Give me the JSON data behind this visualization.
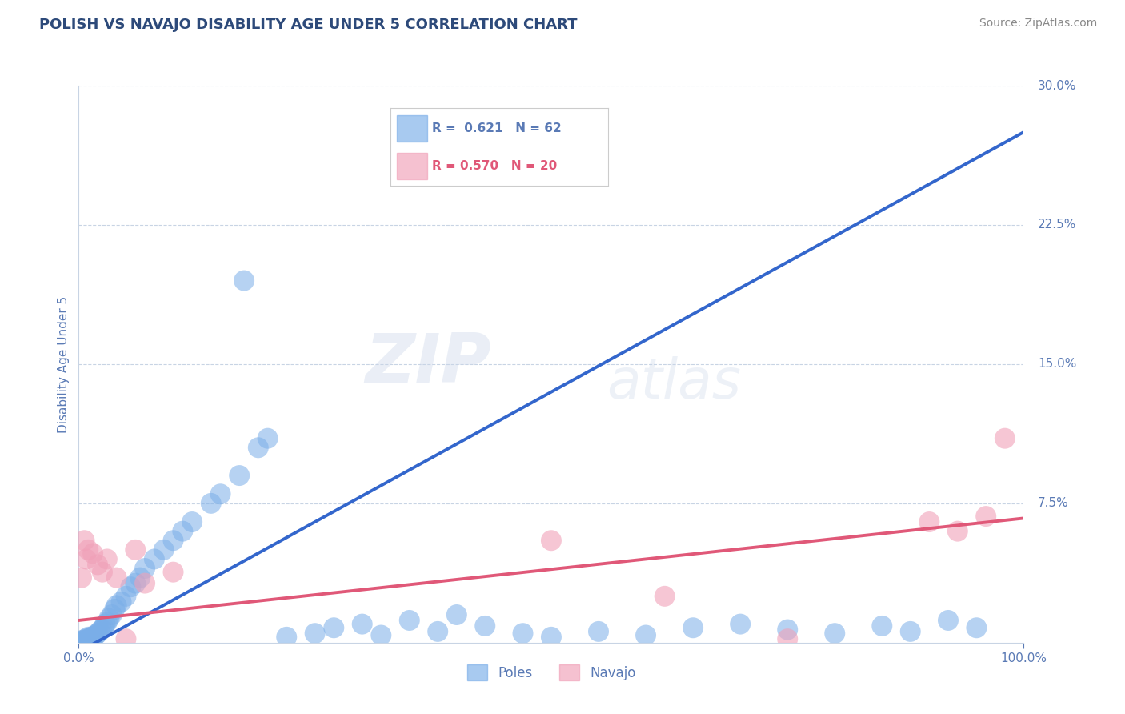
{
  "title": "POLISH VS NAVAJO DISABILITY AGE UNDER 5 CORRELATION CHART",
  "source": "Source: ZipAtlas.com",
  "ylabel": "Disability Age Under 5",
  "xlim": [
    0,
    100
  ],
  "ylim": [
    0,
    30
  ],
  "ytick_positions": [
    0,
    7.5,
    15.0,
    22.5,
    30.0
  ],
  "ytick_labels": [
    "",
    "7.5%",
    "15.0%",
    "22.5%",
    "30.0%"
  ],
  "title_color": "#2d4a7a",
  "axis_color": "#5a7ab5",
  "background_color": "#ffffff",
  "poles_color": "#7aaee8",
  "navajo_color": "#f0a0b8",
  "poles_line_color": "#3366cc",
  "navajo_line_color": "#e05878",
  "legend_R_poles": "0.621",
  "legend_N_poles": "62",
  "legend_R_navajo": "0.570",
  "legend_N_navajo": "20",
  "poles_x": [
    0.3,
    0.5,
    0.6,
    0.8,
    0.9,
    1.0,
    1.1,
    1.2,
    1.3,
    1.4,
    1.5,
    1.6,
    1.8,
    2.0,
    2.2,
    2.4,
    2.6,
    2.8,
    3.0,
    3.2,
    3.5,
    3.8,
    4.0,
    4.5,
    5.0,
    5.5,
    6.0,
    6.5,
    7.0,
    8.0,
    9.0,
    10.0,
    11.0,
    12.0,
    14.0,
    15.0,
    17.0,
    19.0,
    20.0,
    22.0,
    25.0,
    27.0,
    30.0,
    32.0,
    35.0,
    38.0,
    40.0,
    43.0,
    47.0,
    50.0,
    55.0,
    60.0,
    65.0,
    70.0,
    75.0,
    80.0,
    85.0,
    88.0,
    92.0,
    95.0,
    17.5,
    0.4
  ],
  "poles_y": [
    0.1,
    0.15,
    0.1,
    0.2,
    0.15,
    0.3,
    0.2,
    0.25,
    0.2,
    0.3,
    0.35,
    0.3,
    0.4,
    0.5,
    0.6,
    0.7,
    0.8,
    1.0,
    1.1,
    1.3,
    1.5,
    1.8,
    2.0,
    2.2,
    2.5,
    3.0,
    3.2,
    3.5,
    4.0,
    4.5,
    5.0,
    5.5,
    6.0,
    6.5,
    7.5,
    8.0,
    9.0,
    10.5,
    11.0,
    0.3,
    0.5,
    0.8,
    1.0,
    0.4,
    1.2,
    0.6,
    1.5,
    0.9,
    0.5,
    0.3,
    0.6,
    0.4,
    0.8,
    1.0,
    0.7,
    0.5,
    0.9,
    0.6,
    1.2,
    0.8,
    19.5,
    0.05
  ],
  "navajo_x": [
    0.3,
    0.6,
    0.8,
    1.0,
    1.5,
    2.0,
    2.5,
    3.0,
    4.0,
    5.0,
    6.0,
    7.0,
    10.0,
    50.0,
    62.0,
    75.0,
    90.0,
    93.0,
    96.0,
    98.0
  ],
  "navajo_y": [
    3.5,
    5.5,
    4.5,
    5.0,
    4.8,
    4.2,
    3.8,
    4.5,
    3.5,
    0.2,
    5.0,
    3.2,
    3.8,
    5.5,
    2.5,
    0.2,
    6.5,
    6.0,
    6.8,
    11.0
  ],
  "poles_reg_slope": 0.28,
  "poles_reg_intercept": -0.5,
  "navajo_reg_slope": 0.055,
  "navajo_reg_intercept": 1.2,
  "trend_slope": 0.28,
  "trend_intercept": -0.5
}
